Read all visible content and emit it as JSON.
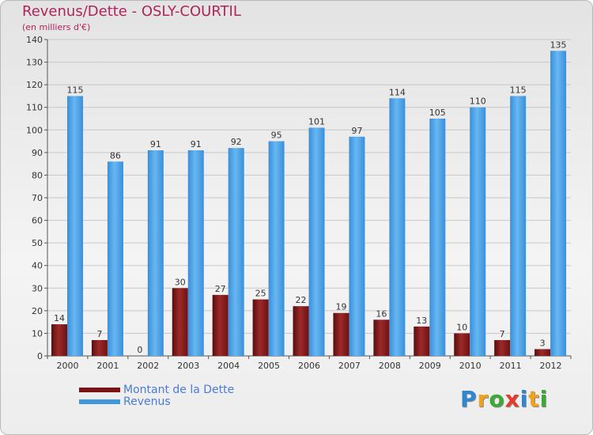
{
  "header": {
    "title": "Revenus/Dette - OSLY-COURTIL",
    "subtitle": "(en milliers d'€)"
  },
  "colors": {
    "title": "#b0245a",
    "dette": "#7a1414",
    "revenus": "#3f97dd",
    "axis_text": "#333333",
    "legend_text": "#4a7bd6"
  },
  "chart_data": {
    "type": "bar",
    "title": "Revenus/Dette - OSLY-COURTIL",
    "subtitle": "(en milliers d'€)",
    "categories": [
      "2000",
      "2001",
      "2002",
      "2003",
      "2004",
      "2005",
      "2006",
      "2007",
      "2008",
      "2009",
      "2010",
      "2011",
      "2012"
    ],
    "series": [
      {
        "name": "Montant de la Dette",
        "values": [
          14,
          7,
          0,
          30,
          27,
          25,
          22,
          19,
          16,
          13,
          10,
          7,
          3
        ]
      },
      {
        "name": "Revenus",
        "values": [
          115,
          86,
          91,
          91,
          92,
          95,
          101,
          97,
          114,
          105,
          110,
          115,
          135
        ]
      }
    ],
    "ylim": [
      0,
      140
    ],
    "yticks": [
      0,
      10,
      20,
      30,
      40,
      50,
      60,
      70,
      80,
      90,
      100,
      110,
      120,
      130,
      140
    ],
    "grid": true,
    "legend_position": "bottom-left"
  },
  "legend": {
    "items": [
      {
        "label": "Montant de la Dette",
        "color": "#7a1414"
      },
      {
        "label": "Revenus",
        "color": "#3f97dd"
      }
    ]
  },
  "logo": {
    "letters": [
      "P",
      "r",
      "o",
      "x",
      "i",
      "t",
      "i"
    ],
    "colors": [
      "#2f86d1",
      "#f0a21c",
      "#3aa935",
      "#e43b2d",
      "#2f86d1",
      "#f0a21c",
      "#3aa935"
    ]
  }
}
